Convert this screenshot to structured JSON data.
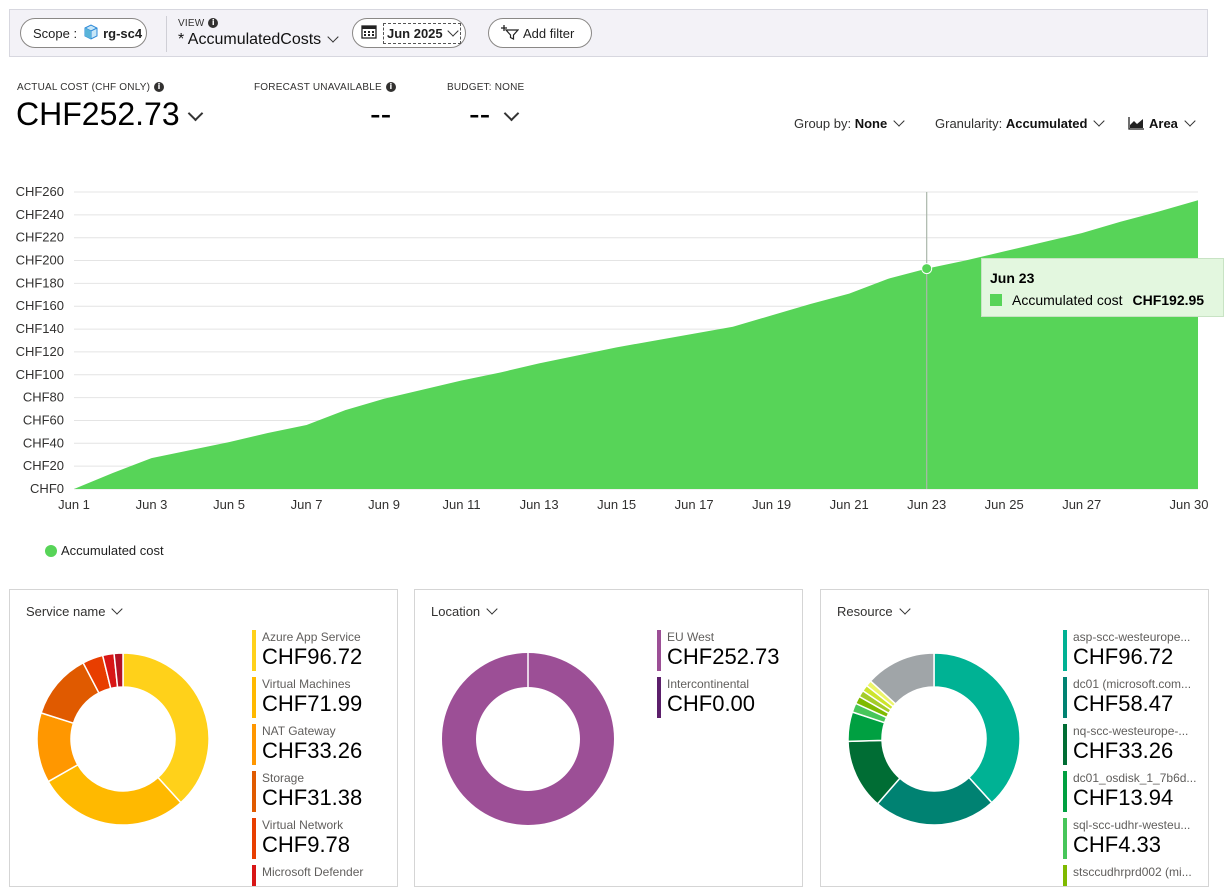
{
  "toolbar": {
    "scope_label": "Scope :",
    "scope_value": "rg-sc4",
    "view_label": "VIEW",
    "view_value": "* AccumulatedCosts",
    "date_value": "Jun 2025",
    "add_filter_label": "Add filter"
  },
  "kpis": {
    "actual_label": "ACTUAL COST (CHF ONLY)",
    "actual_value": "CHF252.73",
    "forecast_label": "FORECAST UNAVAILABLE",
    "forecast_value": "--",
    "budget_label": "BUDGET: NONE",
    "budget_value": "--"
  },
  "controls": {
    "group_by_label": "Group by:",
    "group_by_value": "None",
    "granularity_label": "Granularity:",
    "granularity_value": "Accumulated",
    "chart_type_value": "Area"
  },
  "chart_data": {
    "type": "area",
    "x": [
      "Jun 1",
      "Jun 2",
      "Jun 3",
      "Jun 4",
      "Jun 5",
      "Jun 6",
      "Jun 7",
      "Jun 8",
      "Jun 9",
      "Jun 10",
      "Jun 11",
      "Jun 12",
      "Jun 13",
      "Jun 14",
      "Jun 15",
      "Jun 16",
      "Jun 17",
      "Jun 18",
      "Jun 19",
      "Jun 20",
      "Jun 21",
      "Jun 22",
      "Jun 23",
      "Jun 24",
      "Jun 25",
      "Jun 26",
      "Jun 27",
      "Jun 28",
      "Jun 29",
      "Jun 30"
    ],
    "x_tick_labels": [
      "Jun 1",
      "Jun 3",
      "Jun 5",
      "Jun 7",
      "Jun 9",
      "Jun 11",
      "Jun 13",
      "Jun 15",
      "Jun 17",
      "Jun 19",
      "Jun 21",
      "Jun 23",
      "Jun 25",
      "Jun 27",
      "Jun 30"
    ],
    "y_tick_labels": [
      "CHF0",
      "CHF20",
      "CHF40",
      "CHF60",
      "CHF80",
      "CHF100",
      "CHF120",
      "CHF140",
      "CHF160",
      "CHF180",
      "CHF200",
      "CHF220",
      "CHF240",
      "CHF260"
    ],
    "series": [
      {
        "name": "Accumulated cost",
        "color": "#57d458",
        "values": [
          0,
          14,
          27,
          34,
          41,
          49,
          56,
          69,
          79,
          87,
          95,
          102,
          110,
          117,
          124,
          130,
          136,
          142,
          152,
          162,
          171,
          184,
          192.95,
          200,
          208,
          216,
          224,
          234,
          243,
          252.73
        ]
      }
    ],
    "ylim": [
      0,
      260
    ],
    "grid": true,
    "legend": "bottom-left",
    "highlight": {
      "date": "Jun 23",
      "label": "Accumulated cost",
      "value": "CHF192.95"
    }
  },
  "cards": [
    {
      "title": "Service name",
      "items": [
        {
          "name": "Azure App Service",
          "value": "CHF96.72",
          "amount": 96.72,
          "color": "#ffd11a"
        },
        {
          "name": "Virtual Machines",
          "value": "CHF71.99",
          "amount": 71.99,
          "color": "#ffb900"
        },
        {
          "name": "NAT Gateway",
          "value": "CHF33.26",
          "amount": 33.26,
          "color": "#ff9700"
        },
        {
          "name": "Storage",
          "value": "CHF31.38",
          "amount": 31.38,
          "color": "#e05a00"
        },
        {
          "name": "Virtual Network",
          "value": "CHF9.78",
          "amount": 9.78,
          "color": "#e83e00"
        },
        {
          "name": "Microsoft Defender",
          "value": "",
          "amount": 5.4,
          "color": "#d81616"
        },
        {
          "name": "",
          "value": "",
          "amount": 4.2,
          "color": "#b31224"
        }
      ]
    },
    {
      "title": "Location",
      "items": [
        {
          "name": "EU West",
          "value": "CHF252.73",
          "amount": 252.73,
          "color": "#9c4f96"
        },
        {
          "name": "Intercontinental",
          "value": "CHF0.00",
          "amount": 0,
          "color": "#5c1f6b"
        }
      ]
    },
    {
      "title": "Resource",
      "items": [
        {
          "name": "asp-scc-westeurope...",
          "value": "CHF96.72",
          "amount": 96.72,
          "color": "#00b294"
        },
        {
          "name": "dc01 (microsoft.com...",
          "value": "CHF58.47",
          "amount": 58.47,
          "color": "#008272"
        },
        {
          "name": "nq-scc-westeurope-...",
          "value": "CHF33.26",
          "amount": 33.26,
          "color": "#006d34"
        },
        {
          "name": "dc01_osdisk_1_7b6d...",
          "value": "CHF13.94",
          "amount": 13.94,
          "color": "#00a041"
        },
        {
          "name": "sql-scc-udhr-westeu...",
          "value": "CHF4.33",
          "amount": 4.33,
          "color": "#47c65a"
        },
        {
          "name": "stsccudhrprd002 (mi...",
          "value": "",
          "amount": 3.6,
          "color": "#7fba00"
        },
        {
          "name": "",
          "value": "",
          "amount": 3.2,
          "color": "#a4cc28"
        },
        {
          "name": "",
          "value": "",
          "amount": 3.0,
          "color": "#cde42c"
        },
        {
          "name": "",
          "value": "",
          "amount": 2.8,
          "color": "#ecf56a"
        },
        {
          "name": "",
          "value": "",
          "amount": 33.4,
          "color": "#a0a5a8"
        }
      ]
    }
  ]
}
